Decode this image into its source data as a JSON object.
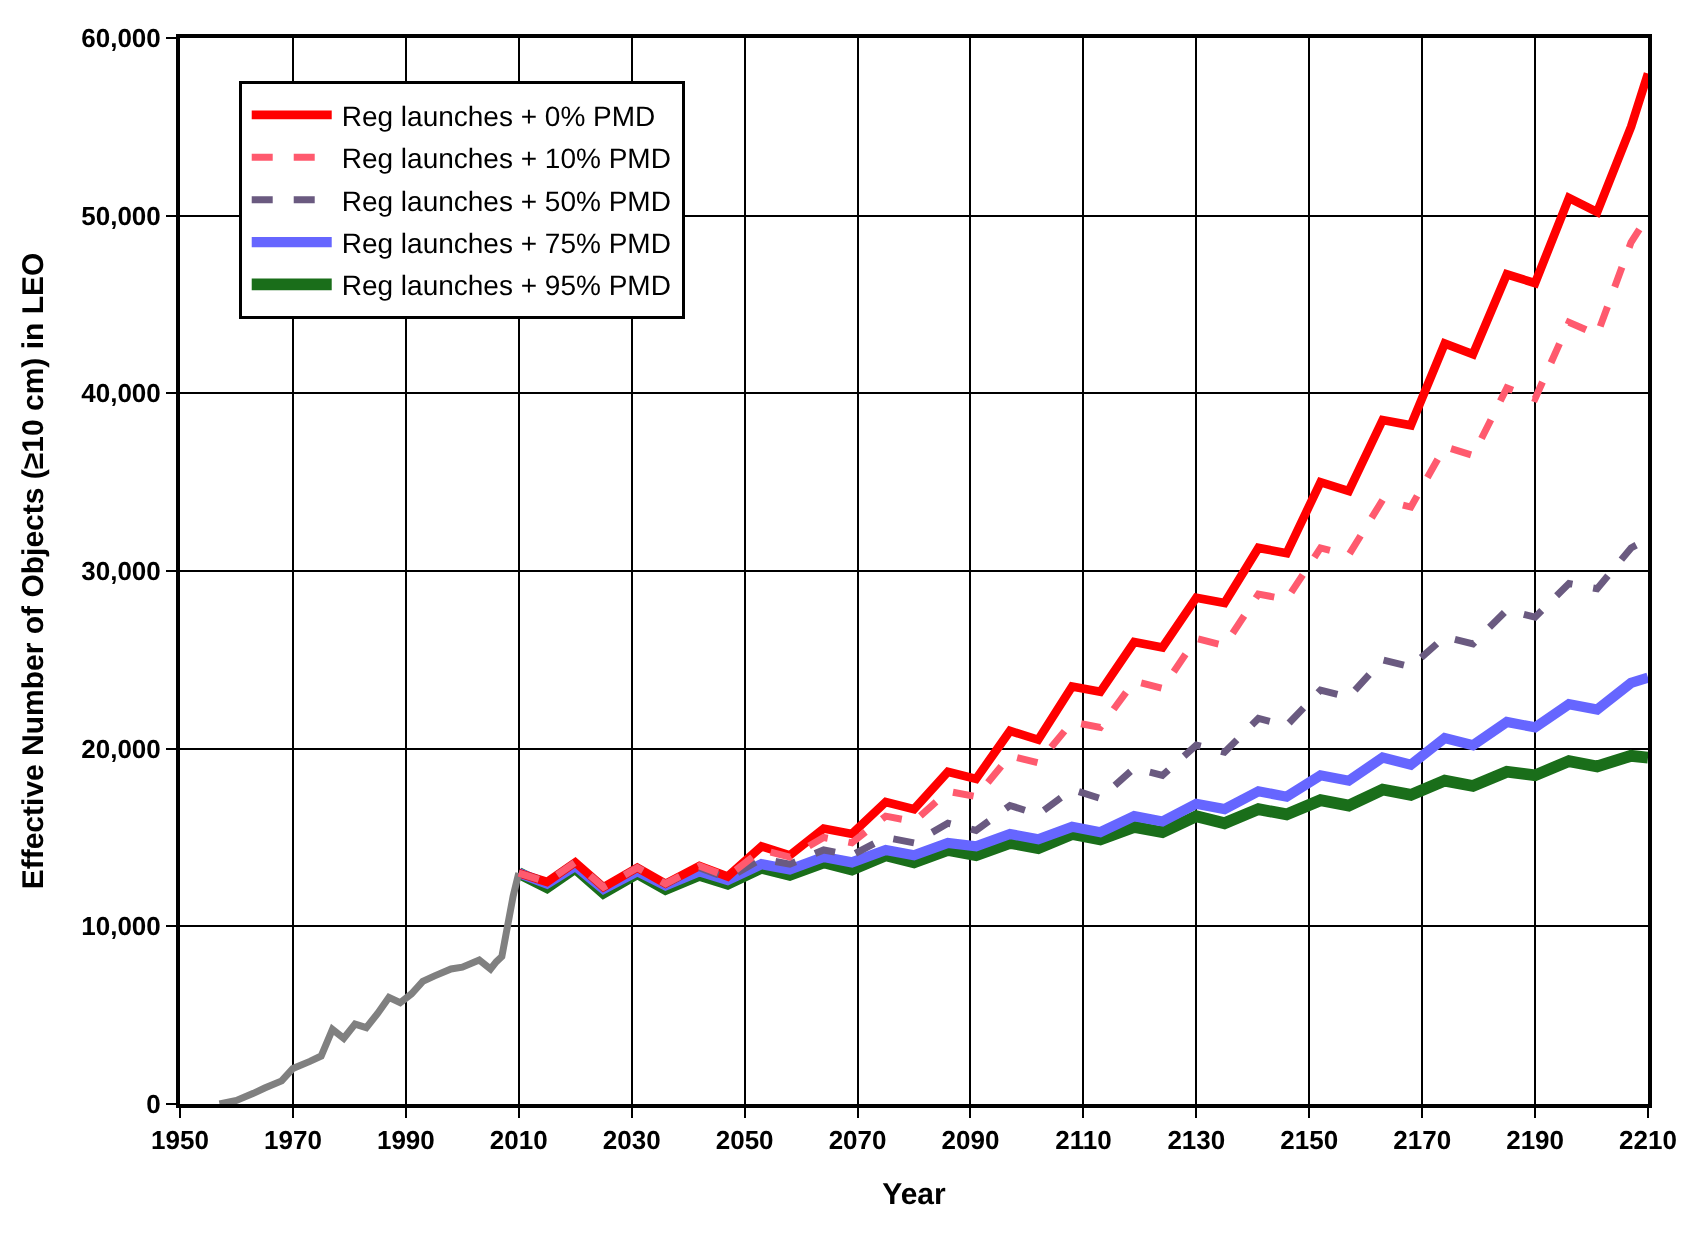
{
  "chart_data": {
    "type": "line",
    "xlabel": "Year",
    "ylabel": "Effective Number of Objects (≥10 cm) in LEO",
    "xlim": [
      1950,
      2210
    ],
    "xticks": [
      1950,
      1970,
      1990,
      2010,
      2030,
      2050,
      2070,
      2090,
      2110,
      2130,
      2150,
      2170,
      2190,
      2210
    ],
    "ylim": [
      0,
      60000
    ],
    "yticks": [
      {
        "value": 0,
        "label": "0"
      },
      {
        "value": 10000,
        "label": "10,000"
      },
      {
        "value": 20000,
        "label": "20,000"
      },
      {
        "value": 30000,
        "label": "30,000"
      },
      {
        "value": 40000,
        "label": "40,000"
      },
      {
        "value": 50000,
        "label": "50,000"
      },
      {
        "value": 60000,
        "label": "60,000"
      }
    ],
    "grid": true,
    "legend": "top left",
    "marker": "none",
    "x": [
      2010,
      2015,
      2020,
      2025,
      2031,
      2036,
      2042,
      2047,
      2053,
      2058,
      2064,
      2069,
      2075,
      2080,
      2086,
      2091,
      2097,
      2102,
      2108,
      2113,
      2119,
      2124,
      2130,
      2135,
      2141,
      2146,
      2152,
      2157,
      2163,
      2168,
      2174,
      2179,
      2185,
      2190,
      2196,
      2201,
      2207,
      2210
    ],
    "series": [
      {
        "x": [
          1957,
          1960,
          1963,
          1965,
          1968,
          1970,
          1973,
          1975,
          1977,
          1979,
          1981,
          1983,
          1985,
          1987,
          1989,
          1991,
          1993,
          1995,
          1998,
          2000,
          2003,
          2005,
          2006,
          2007,
          2008,
          2009,
          2010
        ],
        "color": "#808080",
        "line_style": "solid",
        "values": [
          0,
          200,
          600,
          900,
          1300,
          2000,
          2400,
          2700,
          4200,
          3700,
          4500,
          4300,
          5100,
          6000,
          5700,
          6200,
          6900,
          7200,
          7600,
          7700,
          8100,
          7600,
          8000,
          8300,
          10000,
          11700,
          13000
        ]
      },
      {
        "name": "Reg launches + 0% PMD",
        "color": "#ff0000",
        "line_style": "solid",
        "values": [
          13000,
          12500,
          13600,
          12200,
          13300,
          12400,
          13400,
          12800,
          14500,
          14000,
          15500,
          15200,
          17000,
          16600,
          18700,
          18300,
          21000,
          20500,
          23500,
          23200,
          26000,
          25700,
          28500,
          28200,
          31300,
          31000,
          35000,
          34500,
          38500,
          38200,
          42800,
          42200,
          46700,
          46200,
          51000,
          50200,
          55000,
          58000
        ]
      },
      {
        "name": "Reg launches + 10% PMD",
        "color": "#ff5a6e",
        "line_style": "dashed",
        "values": [
          13000,
          12500,
          13600,
          12200,
          13300,
          12400,
          13400,
          12800,
          14300,
          13900,
          15000,
          14700,
          16200,
          15900,
          17600,
          17300,
          19600,
          19200,
          21500,
          21200,
          23800,
          23400,
          26200,
          25800,
          28700,
          28400,
          31300,
          30900,
          34000,
          33600,
          37000,
          36500,
          40300,
          39700,
          44000,
          43300,
          48500,
          50000
        ]
      },
      {
        "name": "Reg launches + 50% PMD",
        "color": "#6a5a80",
        "line_style": "dashed",
        "values": [
          13000,
          12500,
          13600,
          12200,
          13300,
          12400,
          13300,
          12700,
          13800,
          13500,
          14300,
          14000,
          15000,
          14700,
          15800,
          15400,
          16800,
          16300,
          17700,
          17200,
          18900,
          18500,
          20200,
          19800,
          21700,
          21300,
          23300,
          22900,
          25000,
          24600,
          26300,
          25900,
          27800,
          27400,
          29300,
          29000,
          31300,
          31800
        ]
      },
      {
        "name": "Reg launches + 75% PMD",
        "color": "#6666ff",
        "line_style": "solid",
        "values": [
          13000,
          12400,
          13400,
          12100,
          13100,
          12300,
          13100,
          12600,
          13500,
          13200,
          13900,
          13600,
          14300,
          14000,
          14700,
          14500,
          15200,
          14900,
          15600,
          15300,
          16200,
          15900,
          16900,
          16600,
          17600,
          17300,
          18500,
          18200,
          19500,
          19100,
          20600,
          20200,
          21500,
          21200,
          22500,
          22200,
          23700,
          24000
        ]
      },
      {
        "name": "Reg launches + 95% PMD",
        "color": "#1a6e1a",
        "line_style": "solid",
        "values": [
          13000,
          12200,
          13300,
          11900,
          13000,
          12100,
          12900,
          12400,
          13300,
          12900,
          13600,
          13200,
          14000,
          13600,
          14300,
          14000,
          14700,
          14400,
          15200,
          14900,
          15600,
          15300,
          16200,
          15800,
          16600,
          16300,
          17100,
          16800,
          17700,
          17400,
          18200,
          17900,
          18700,
          18500,
          19300,
          19000,
          19600,
          19500
        ]
      }
    ]
  }
}
